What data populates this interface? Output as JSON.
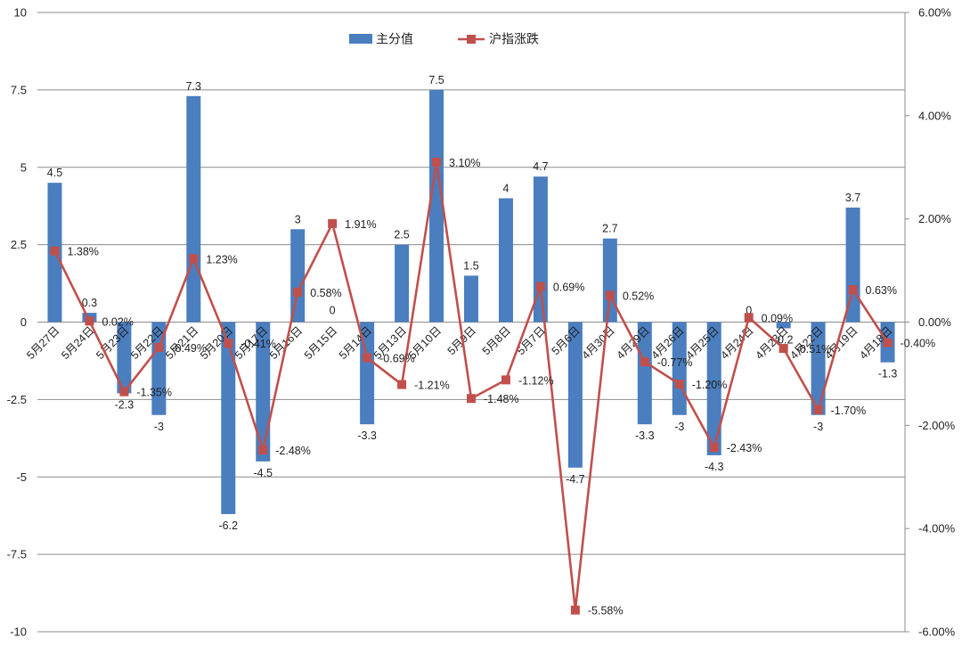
{
  "chart_data": {
    "type": "bar",
    "categories": [
      "5月27日",
      "5月24日",
      "5月23日",
      "5月22日",
      "5月21日",
      "5月20日",
      "5月17日",
      "5月16日",
      "5月15日",
      "5月14日",
      "5月13日",
      "5月10日",
      "5月9日",
      "5月8日",
      "5月7日",
      "5月6日",
      "4月30日",
      "4月29日",
      "4月26日",
      "4月25日",
      "4月24日",
      "4月23日",
      "4月22日",
      "4月19日",
      "4月18日"
    ],
    "series": [
      {
        "name": "主分值",
        "kind": "bar",
        "axis": "left",
        "color": "#4a7ebf",
        "values": [
          4.5,
          0.3,
          -2.3,
          -3,
          7.3,
          -6.2,
          -4.5,
          3,
          0,
          -3.3,
          2.5,
          7.5,
          1.5,
          4,
          4.7,
          -4.7,
          2.7,
          -3.3,
          -3,
          -4.3,
          0,
          -0.2,
          -3,
          3.7,
          -1.3
        ],
        "labels": [
          "4.5",
          "0.3",
          "-2.3",
          "-3",
          "7.3",
          "-6.2",
          "-4.5",
          "3",
          "0",
          "-3.3",
          "2.5",
          "7.5",
          "1.5",
          "4",
          "4.7",
          "-4.7",
          "2.7",
          "-3.3",
          "-3",
          "-4.3",
          "0",
          "-0.2",
          "-3",
          "3.7",
          "-1.3"
        ]
      },
      {
        "name": "沪指涨跌",
        "kind": "line",
        "axis": "right",
        "color": "#c0504d",
        "values": [
          1.38,
          0.02,
          -1.35,
          -0.49,
          1.23,
          -0.41,
          -2.48,
          0.58,
          1.91,
          -0.69,
          -1.21,
          3.1,
          -1.48,
          -1.12,
          0.69,
          -5.58,
          0.52,
          -0.77,
          -1.2,
          -2.43,
          0.09,
          -0.51,
          -1.7,
          0.63,
          -0.4
        ],
        "labels": [
          "1.38%",
          "0.02%",
          "-1.35%",
          "-0.49%",
          "1.23%",
          "-0.41%",
          "-2.48%",
          "0.58%",
          "1.91%",
          "-0.69%",
          "-1.21%",
          "3.10%",
          "-1.48%",
          "-1.12%",
          "0.69%",
          "-5.58%",
          "0.52%",
          "-0.77%",
          "-1.20%",
          "-2.43%",
          "0.09%",
          "-0.51%",
          "-1.70%",
          "0.63%",
          "-0.40%"
        ]
      }
    ],
    "y_left": {
      "min": -10,
      "max": 10,
      "ticks": [
        "10",
        "7.5",
        "5",
        "2.5",
        "0",
        "-2.5",
        "-5",
        "-7.5",
        "-10"
      ]
    },
    "y_right": {
      "min": -6,
      "max": 6,
      "ticks": [
        "6.00%",
        "4.00%",
        "2.00%",
        "0.00%",
        "-2.00%",
        "-4.00%",
        "-6.00%"
      ]
    },
    "grid": true,
    "legend_position": "top-center"
  }
}
